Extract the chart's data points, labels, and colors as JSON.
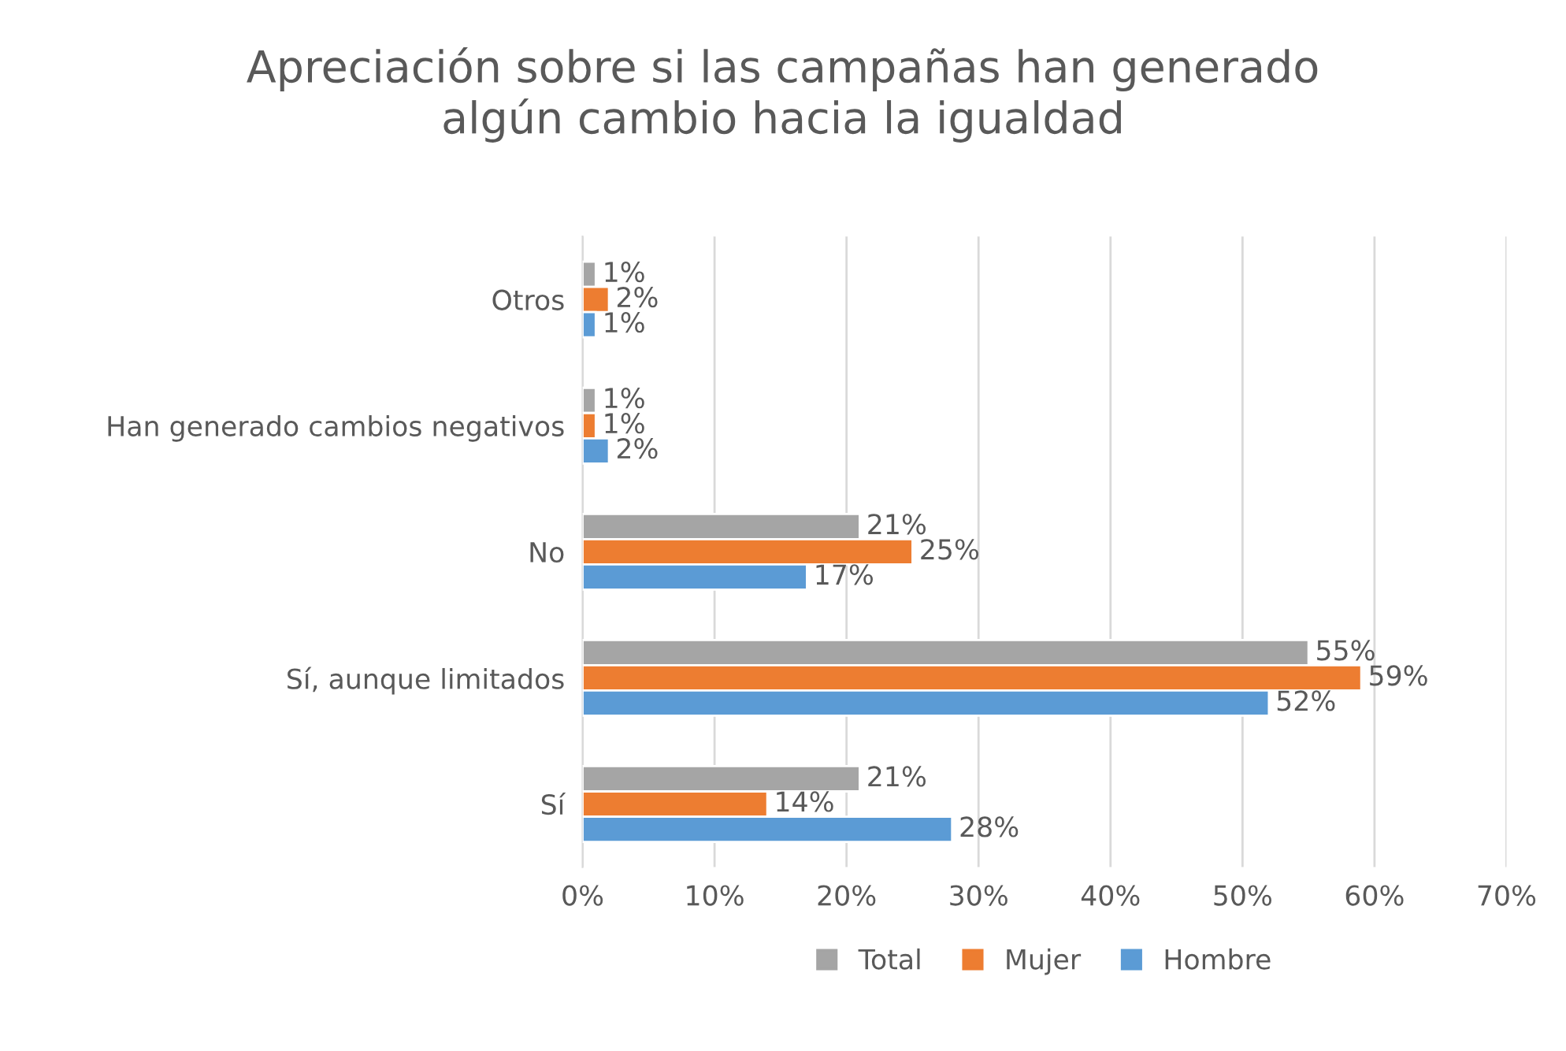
{
  "chart_data": {
    "type": "bar",
    "orientation": "horizontal",
    "title": "Apreciación sobre si las campañas han generado\nalgún cambio hacia la igualdad",
    "categories": [
      "Otros",
      "Han generado cambios negativos",
      "No",
      "Sí, aunque limitados",
      "Sí"
    ],
    "series": [
      {
        "name": "Total",
        "color": "#a5a5a5",
        "values": [
          1,
          1,
          21,
          55,
          21
        ],
        "value_labels": [
          "1%",
          "1%",
          "21%",
          "55%",
          "21%"
        ]
      },
      {
        "name": "Mujer",
        "color": "#ed7d31",
        "values": [
          2,
          1,
          25,
          59,
          14
        ],
        "value_labels": [
          "2%",
          "1%",
          "25%",
          "59%",
          "14%"
        ]
      },
      {
        "name": "Hombre",
        "color": "#5b9bd5",
        "values": [
          1,
          2,
          17,
          52,
          28
        ],
        "value_labels": [
          "1%",
          "2%",
          "17%",
          "52%",
          "28%"
        ]
      }
    ],
    "xlim": [
      0,
      70
    ],
    "xticks": [
      {
        "value": 0,
        "label": "0%"
      },
      {
        "value": 10,
        "label": "10%"
      },
      {
        "value": 20,
        "label": "20%"
      },
      {
        "value": 30,
        "label": "30%"
      },
      {
        "value": 40,
        "label": "40%"
      },
      {
        "value": 50,
        "label": "50%"
      },
      {
        "value": 60,
        "label": "60%"
      },
      {
        "value": 70,
        "label": "70%"
      }
    ],
    "grid": "x",
    "legend": "bottom"
  }
}
